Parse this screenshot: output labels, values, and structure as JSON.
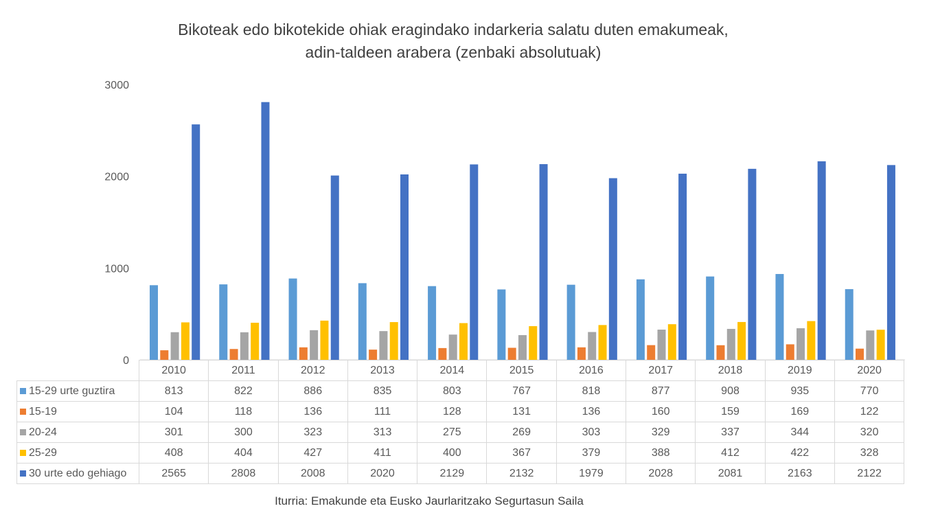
{
  "chart_data": {
    "type": "bar",
    "title": "Bikoteak edo bikotekide ohiak eragindako indarkeria salatu duten emakumeak,",
    "subtitle": "adin-taldeen arabera (zenbaki absolutuak)",
    "xlabel": "",
    "ylabel": "",
    "ylim": [
      0,
      3000
    ],
    "yticks": [
      0,
      1000,
      2000,
      3000
    ],
    "grid": false,
    "legend": "data-table",
    "categories": [
      "2010",
      "2011",
      "2012",
      "2013",
      "2014",
      "2015",
      "2016",
      "2017",
      "2018",
      "2019",
      "2020"
    ],
    "series": [
      {
        "name": "15-29 urte guztira",
        "color": "#5B9BD5",
        "values": [
          813,
          822,
          886,
          835,
          803,
          767,
          818,
          877,
          908,
          935,
          770
        ]
      },
      {
        "name": "15-19",
        "color": "#ED7D31",
        "values": [
          104,
          118,
          136,
          111,
          128,
          131,
          136,
          160,
          159,
          169,
          122
        ]
      },
      {
        "name": "20-24",
        "color": "#A5A5A5",
        "values": [
          301,
          300,
          323,
          313,
          275,
          269,
          303,
          329,
          337,
          344,
          320
        ]
      },
      {
        "name": "25-29",
        "color": "#FFC000",
        "values": [
          408,
          404,
          427,
          411,
          400,
          367,
          379,
          388,
          412,
          422,
          328
        ]
      },
      {
        "name": "30 urte edo gehiago",
        "color": "#4472C4",
        "values": [
          2565,
          2808,
          2008,
          2020,
          2129,
          2132,
          1979,
          2028,
          2081,
          2163,
          2122
        ]
      }
    ],
    "source": "Iturria: Emakunde eta Eusko Jaurlaritzako Segurtasun Saila"
  }
}
